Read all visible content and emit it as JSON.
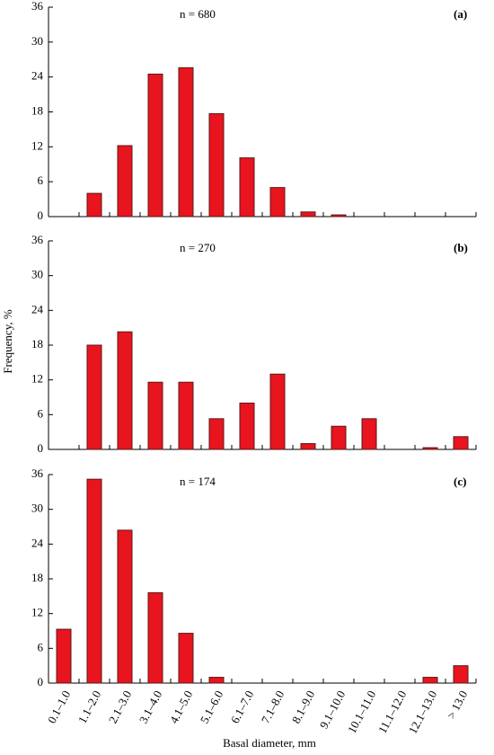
{
  "chart_data": [
    {
      "type": "bar",
      "annotation": "n = 680",
      "panel_label": "(a)",
      "values": [
        0,
        4,
        12.2,
        24.5,
        25.6,
        17.7,
        10.1,
        5,
        0.8,
        0.3,
        0,
        0,
        0,
        0
      ],
      "color": "#e8141e",
      "ylim": [
        0,
        36
      ],
      "yticks": [
        0,
        6,
        12,
        18,
        24,
        30,
        36
      ]
    },
    {
      "type": "bar",
      "annotation": "n = 270",
      "panel_label": "(b)",
      "y_label": "Frequency, %",
      "values": [
        0,
        18,
        20.3,
        11.6,
        11.6,
        5.3,
        8,
        13,
        1,
        4,
        5.3,
        0,
        0.3,
        2.2
      ],
      "color": "#e8141e",
      "ylim": [
        0,
        36
      ],
      "yticks": [
        0,
        6,
        12,
        18,
        24,
        30,
        36
      ]
    },
    {
      "type": "bar",
      "annotation": "n = 174",
      "panel_label": "(c)",
      "x_label": "Basal diameter, mm",
      "categories": [
        "0.1–1.0",
        "1.1–2.0",
        "2.1–3.0",
        "3.1–4.0",
        "4.1–5.0",
        "5.1–6.0",
        "6.1–7.0",
        "7.1–8.0",
        "8.1–9.0",
        "9.1–10.0",
        "10.1–11.0",
        "11.1–12.0",
        "12.1–13.0",
        "> 13.0"
      ],
      "values": [
        9.3,
        35.2,
        26.4,
        15.6,
        8.6,
        1,
        0,
        0,
        0,
        0,
        0,
        0,
        1,
        3
      ],
      "color": "#e8141e",
      "ylim": [
        0,
        36
      ],
      "yticks": [
        0,
        6,
        12,
        18,
        24,
        30,
        36
      ]
    }
  ]
}
